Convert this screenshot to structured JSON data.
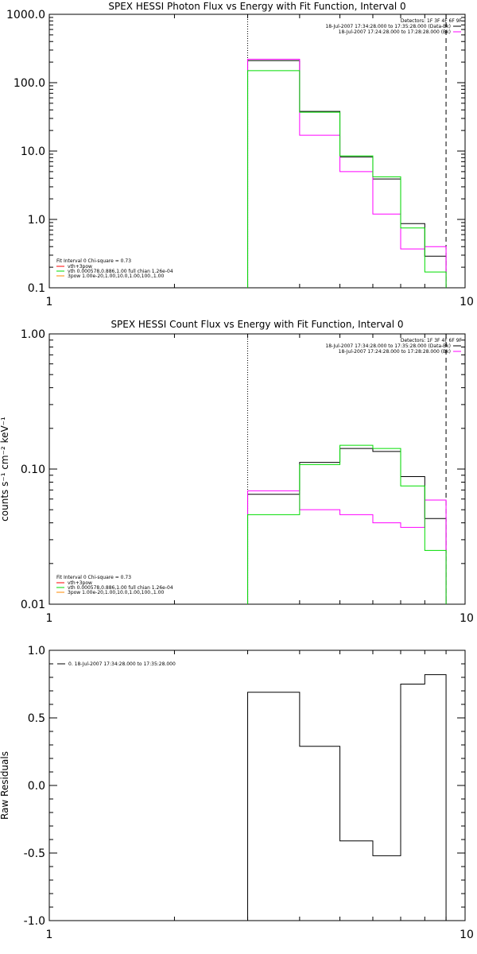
{
  "colors": {
    "data": "#000000",
    "bk": "#ff00ff",
    "fit": "#00dd00",
    "comp": "#ff8800",
    "foot": "#ff0000",
    "background": "#ffffff"
  },
  "chart_data": [
    {
      "type": "line",
      "title": "SPEX HESSI Photon Flux vs Energy with Fit Function, Interval 0",
      "xlabel": "",
      "ylabel": "",
      "xscale": "log",
      "yscale": "log",
      "xlim": [
        1,
        10
      ],
      "ylim": [
        0.1,
        1000
      ],
      "xticks": [
        "1",
        "10"
      ],
      "yticks": [
        "0.1",
        "1.0",
        "10.0",
        "100.0",
        "1000.0"
      ],
      "edges": [
        3,
        4,
        5,
        6,
        7,
        8,
        9
      ],
      "series": [
        {
          "name": "18-Jul-2007 17:34:28.000 to 17:35:28.000 (Data-Bk)",
          "role": "data",
          "values": [
            210,
            38,
            8.2,
            3.9,
            0.87,
            0.29
          ]
        },
        {
          "name": "18-Jul-2007 17:24:28.000 to 17:28:28.000 (Bk)",
          "role": "bk",
          "values": [
            220,
            17,
            5.0,
            1.2,
            0.37,
            0.4
          ]
        },
        {
          "role": "fit",
          "values": [
            150,
            37,
            8.5,
            4.2,
            0.75,
            0.17
          ]
        }
      ],
      "vlines": [
        {
          "x": 3,
          "style": "dotted"
        },
        {
          "x": 9,
          "style": "dashed"
        }
      ],
      "legend_top": {
        "position": "top-right",
        "header": "Detectors: 1F 3F 4F 6F 9F",
        "entries": [
          {
            "text": "18-Jul-2007 17:34:28.000 to 17:35:28.000 (Data-Bk)",
            "role": "data"
          },
          {
            "text": "18-Jul-2007 17:24:28.000 to 17:28:28.000 (Bk)",
            "role": "bk"
          }
        ]
      },
      "legend_bottom": {
        "position": "bottom-left",
        "header": "Fit Interval 0   Chi-square = 0.73",
        "entries": [
          {
            "text": "vth+3pow",
            "role": "foot"
          },
          {
            "text": "vth 0.000578,0.886,1.00  full chian 1.26e-04",
            "role": "fit"
          },
          {
            "text": "3pow 1.00e-20,1.00,10.0,1.00,100.,1.00",
            "role": "comp"
          }
        ]
      }
    },
    {
      "type": "line",
      "title": "SPEX HESSI Count Flux vs Energy with Fit Function, Interval 0",
      "xlabel": "",
      "ylabel": "counts s⁻¹ cm⁻² keV⁻¹",
      "xscale": "log",
      "yscale": "log",
      "xlim": [
        1,
        10
      ],
      "ylim": [
        0.01,
        1
      ],
      "xticks": [
        "1",
        "10"
      ],
      "yticks": [
        "0.01",
        "0.10",
        "1.00"
      ],
      "edges": [
        3,
        4,
        5,
        6,
        7,
        8,
        9
      ],
      "series": [
        {
          "name": "18-Jul-2007 17:34:28.000 to 17:35:28.000 (Data-Bk)",
          "role": "data",
          "values": [
            0.065,
            0.112,
            0.142,
            0.135,
            0.088,
            0.043
          ]
        },
        {
          "name": "18-Jul-2007 17:24:28.000 to 17:28:28.000 (Bk)",
          "role": "bk",
          "values": [
            0.069,
            0.05,
            0.046,
            0.04,
            0.037,
            0.059
          ]
        },
        {
          "role": "fit",
          "values": [
            0.046,
            0.108,
            0.15,
            0.142,
            0.075,
            0.025
          ]
        }
      ],
      "vlines": [
        {
          "x": 3,
          "style": "dotted"
        },
        {
          "x": 9,
          "style": "dashed"
        }
      ],
      "legend_top": {
        "position": "top-right",
        "header": "Detectors: 1F 3F 4F 6F 9F",
        "entries": [
          {
            "text": "18-Jul-2007 17:34:28.000 to 17:35:28.000 (Data-Bk)",
            "role": "data"
          },
          {
            "text": "18-Jul-2007 17:24:28.000 to 17:28:28.000 (Bk)",
            "role": "bk"
          }
        ]
      },
      "legend_bottom": {
        "position": "bottom-left",
        "header": "Fit Interval 0   Chi-square = 0.73",
        "entries": [
          {
            "text": "vth+3pow",
            "role": "foot"
          },
          {
            "text": "vth 0.000578,0.886,1.00  full chian 1.26e-04",
            "role": "fit"
          },
          {
            "text": "3pow 1.00e-20,1.00,10.0,1.00,100.,1.00",
            "role": "comp"
          }
        ]
      }
    },
    {
      "type": "line",
      "title": "",
      "xlabel": "",
      "ylabel": "Raw Residuals",
      "xscale": "log",
      "yscale": "linear",
      "xlim": [
        1,
        10
      ],
      "ylim": [
        -1,
        1
      ],
      "xticks": [
        "1",
        "10"
      ],
      "yticks": [
        "-1.0",
        "-0.5",
        "0.0",
        "0.5",
        "1.0"
      ],
      "edges": [
        3,
        4,
        5,
        6,
        7,
        8,
        9
      ],
      "series": [
        {
          "name": "0. 18-Jul-2007 17:34:28.000 to 17:35:28.000",
          "role": "data",
          "values": [
            0.69,
            0.29,
            -0.41,
            -0.52,
            0.75,
            0.82
          ]
        }
      ],
      "legend_top": {
        "position": "top-left",
        "header": "",
        "entries": [
          {
            "text": "0. 18-Jul-2007 17:34:28.000 to 17:35:28.000",
            "role": "data"
          }
        ]
      }
    }
  ]
}
